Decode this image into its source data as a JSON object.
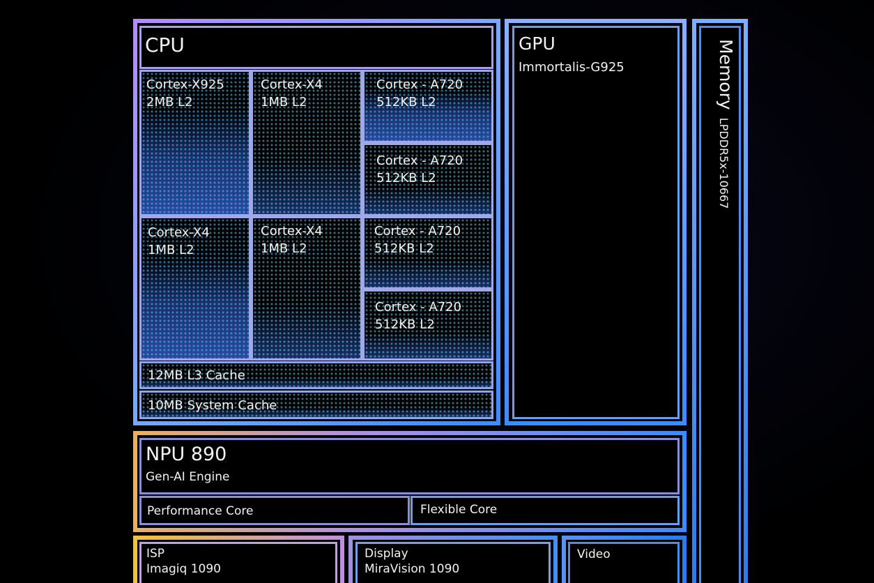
{
  "cpu": {
    "title": "CPU",
    "cores": [
      {
        "name": "Cortex-X925",
        "cache": "2MB L2"
      },
      {
        "name": "Cortex-X4",
        "cache": "1MB L2"
      },
      {
        "name": "Cortex - A720",
        "cache": "512KB L2"
      },
      {
        "name": "Cortex - A720",
        "cache": "512KB L2"
      },
      {
        "name": "Cortex-X4",
        "cache": "1MB L2"
      },
      {
        "name": "Cortex-X4",
        "cache": "1MB L2"
      },
      {
        "name": "Cortex - A720",
        "cache": "512KB L2"
      },
      {
        "name": "Cortex - A720",
        "cache": "512KB L2"
      }
    ],
    "l3": "12MB L3 Cache",
    "system_cache": "10MB System Cache"
  },
  "gpu": {
    "title": "GPU",
    "subtitle": "Immortalis-G925"
  },
  "memory": {
    "title": "Memory",
    "subtitle": "LPDDR5x-10667"
  },
  "npu": {
    "title": "NPU 890",
    "subtitle": "Gen-AI Engine",
    "cores": [
      "Performance Core",
      "Flexible Core"
    ]
  },
  "isp": {
    "title": "ISP",
    "subtitle": "Imagiq 1090"
  },
  "display": {
    "title": "Display",
    "subtitle": "MiraVision 1090"
  },
  "video": {
    "title": "Video"
  }
}
